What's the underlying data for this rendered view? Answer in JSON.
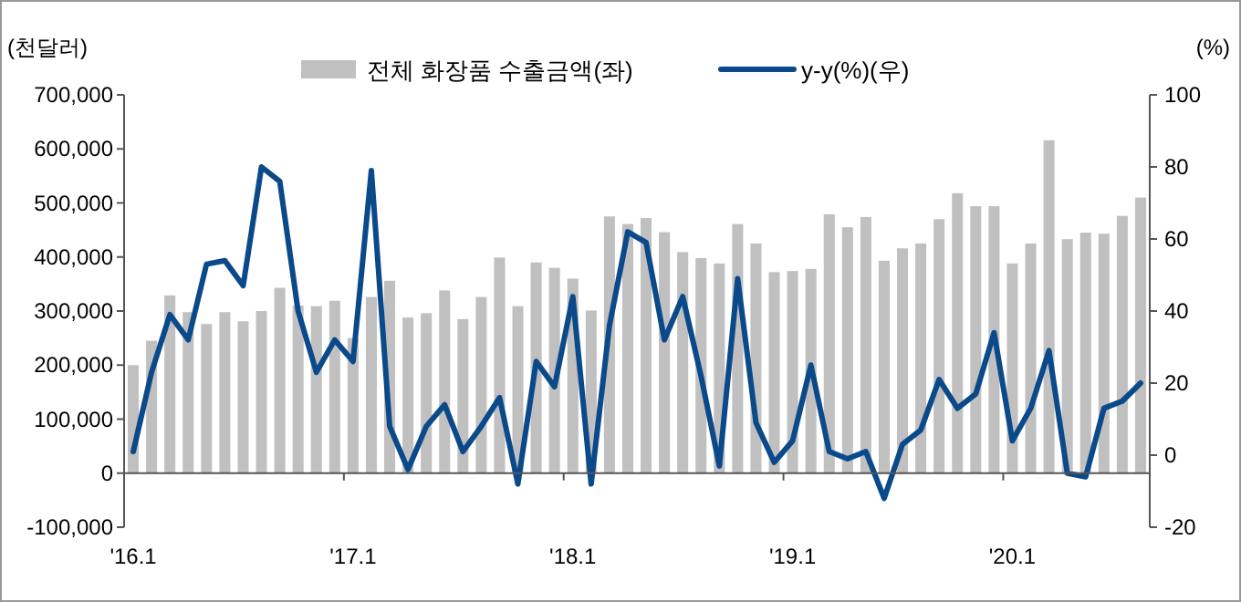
{
  "chart_data": {
    "type": "bar",
    "ylabel": "(천달러)",
    "y2label": "(%)",
    "categories": [
      "'16.1",
      null,
      null,
      null,
      null,
      null,
      null,
      null,
      null,
      null,
      null,
      null,
      "'17.1",
      null,
      null,
      null,
      null,
      null,
      null,
      null,
      null,
      null,
      null,
      null,
      "'18.1",
      null,
      null,
      null,
      null,
      null,
      null,
      null,
      null,
      null,
      null,
      null,
      "'19.1",
      null,
      null,
      null,
      null,
      null,
      null,
      null,
      null,
      null,
      null,
      null,
      "'20.1",
      null,
      null,
      null,
      null,
      null,
      null,
      null
    ],
    "series": [
      {
        "name": "전체 화장품 수출금액(좌)",
        "color": "#c0c0c0",
        "values": [
          200000,
          245000,
          329000,
          298000,
          276000,
          298000,
          281000,
          300000,
          343000,
          310000,
          309000,
          319000,
          250000,
          326000,
          356000,
          288000,
          296000,
          338000,
          285000,
          326000,
          399000,
          309000,
          390000,
          380000,
          360000,
          301000,
          475000,
          461000,
          472000,
          446000,
          409000,
          398000,
          388000,
          461000,
          425000,
          372000,
          374000,
          378000,
          479000,
          455000,
          474000,
          393000,
          416000,
          425000,
          470000,
          518000,
          494000,
          494000,
          388000,
          425000,
          616000,
          433000,
          445000,
          443000,
          476000,
          510000
        ]
      },
      {
        "name": "y-y(%)(우)",
        "type": "line",
        "axis": "y2",
        "color": "#0b4a8a",
        "values": [
          1,
          23,
          39,
          32,
          53,
          54,
          47,
          80,
          76,
          40,
          23,
          32,
          26,
          79,
          8,
          -4,
          8,
          14,
          1,
          8,
          16,
          -8,
          26,
          19,
          44,
          -8,
          36,
          62,
          59,
          32,
          44,
          22,
          -3,
          49,
          9,
          -2,
          4,
          25,
          1,
          -1,
          1,
          -12,
          3,
          7,
          21,
          13,
          17,
          34,
          4,
          13,
          29,
          -5,
          -6,
          13,
          15,
          20
        ]
      }
    ],
    "ylim": [
      -100000,
      700000
    ],
    "yticks": [
      {
        "value": -100000,
        "label": "-100,000"
      },
      0,
      {
        "value": 100000,
        "label": "100,000"
      },
      {
        "value": 200000,
        "label": "200,000"
      },
      {
        "value": 300000,
        "label": "300,000"
      },
      {
        "value": 400000,
        "label": "400,000"
      },
      {
        "value": 500000,
        "label": "500,000"
      },
      {
        "value": 600000,
        "label": "600,000"
      },
      {
        "value": 700000,
        "label": "700,000"
      }
    ],
    "y2lim": [
      -20,
      100
    ],
    "y2ticks": [
      -20,
      0,
      20,
      40,
      60,
      80,
      100
    ],
    "legend": "top"
  }
}
